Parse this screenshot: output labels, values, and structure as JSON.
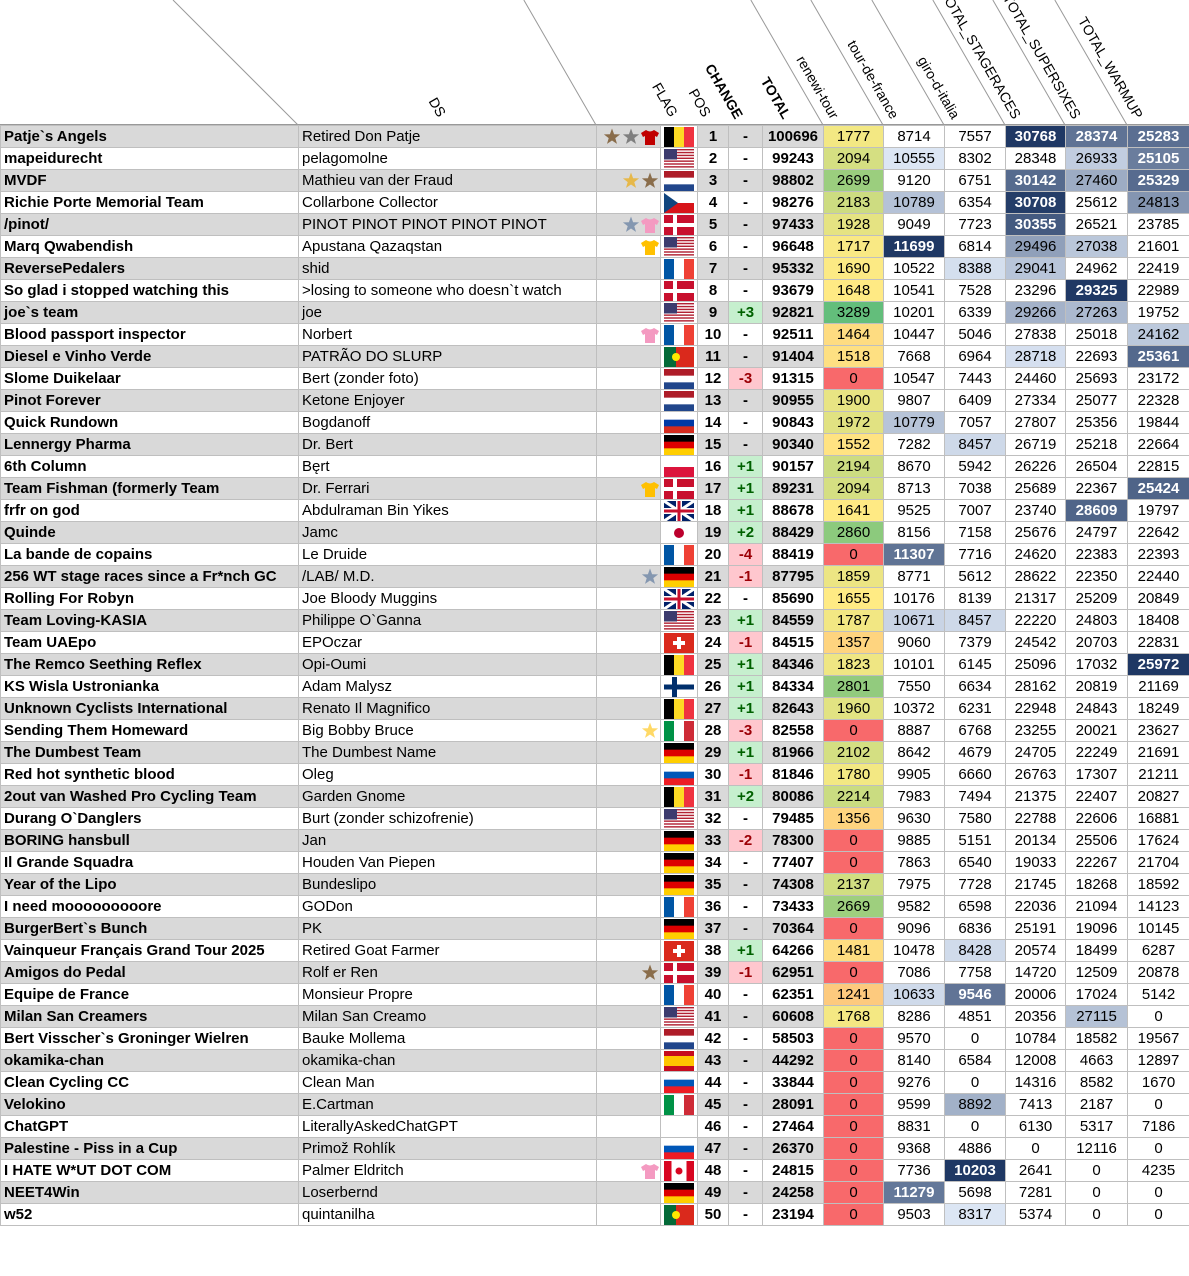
{
  "header": {
    "ds": "DS",
    "flag": "FLAG",
    "pos": "POS",
    "change": "CHANGE",
    "total": "TOTAL",
    "columns": [
      "renewi-tour",
      "tour-de-france",
      "giro-d-italia",
      "TOTAL_STAGERACES",
      "TOTAL_SUPERSIXES",
      "TOTAL_WARMUP"
    ]
  },
  "table": {
    "rows": [
      [
        "Patje`s Angels",
        "Retired Don Patje",
        1,
        "-",
        100696,
        1777,
        8714,
        7557,
        30768,
        28374,
        25283
      ],
      [
        "mapeidurecht",
        "pelagomolne",
        2,
        "-",
        99243,
        2094,
        10555,
        8302,
        28348,
        26933,
        25105
      ],
      [
        "MVDF",
        "Mathieu van der Fraud",
        3,
        "-",
        98802,
        2699,
        9120,
        6751,
        30142,
        27460,
        25329
      ],
      [
        "Richie Porte Memorial Team",
        "Collarbone Collector",
        4,
        "-",
        98276,
        2183,
        10789,
        6354,
        30708,
        25612,
        24813
      ],
      [
        "/pinot/",
        "PINOT PINOT PINOT PINOT PINOT",
        5,
        "-",
        97433,
        1928,
        9049,
        7723,
        30355,
        26521,
        23785
      ],
      [
        "Marq Qwabendish",
        "Apustana Qazaqstan",
        6,
        "-",
        96648,
        1717,
        11699,
        6814,
        29496,
        27038,
        21601
      ],
      [
        "ReversePedalers",
        "shid",
        7,
        "-",
        95332,
        1690,
        10522,
        8388,
        29041,
        24962,
        22419
      ],
      [
        "So glad i stopped watching this",
        ">losing to someone who doesn`t watch",
        8,
        "-",
        93679,
        1648,
        10541,
        7528,
        23296,
        29325,
        22989
      ],
      [
        "joe`s team",
        "joe",
        9,
        "+3",
        92821,
        3289,
        10201,
        6339,
        29266,
        27263,
        19752
      ],
      [
        "Blood passport inspector",
        "Norbert",
        10,
        "-",
        92511,
        1464,
        10447,
        5046,
        27838,
        25018,
        24162
      ],
      [
        "Diesel e Vinho Verde",
        "PATRÃO DO SLURP",
        11,
        "-",
        91404,
        1518,
        7668,
        6964,
        28718,
        22693,
        25361
      ],
      [
        "Slome Duikelaar",
        "Bert (zonder foto)",
        12,
        "-3",
        91315,
        0,
        10547,
        7443,
        24460,
        25693,
        23172
      ],
      [
        "Pinot Forever",
        "Ketone Enjoyer",
        13,
        "-",
        90955,
        1900,
        9807,
        6409,
        27334,
        25077,
        22328
      ],
      [
        "Quick Rundown",
        "Bogdanoff",
        14,
        "-",
        90843,
        1972,
        10779,
        7057,
        27807,
        25356,
        19844
      ],
      [
        "Lennergy Pharma",
        "Dr. Bert",
        15,
        "-",
        90340,
        1552,
        7282,
        8457,
        26719,
        25218,
        22664
      ],
      [
        "6th Column",
        "Bęrt",
        16,
        "+1",
        90157,
        2194,
        8670,
        5942,
        26226,
        26504,
        22815
      ],
      [
        "Team Fishman (formerly Team",
        "Dr. Ferrari",
        17,
        "+1",
        89231,
        2094,
        8713,
        7038,
        25689,
        22367,
        25424
      ],
      [
        "frfr on god",
        "Abdulraman Bin Yikes",
        18,
        "+1",
        88678,
        1641,
        9525,
        7007,
        23740,
        28609,
        19797
      ],
      [
        "Quinde",
        "Jamc",
        19,
        "+2",
        88429,
        2860,
        8156,
        7158,
        25676,
        24797,
        22642
      ],
      [
        "La bande de copains",
        "Le Druide",
        20,
        "-4",
        88419,
        0,
        11307,
        7716,
        24620,
        22383,
        22393
      ],
      [
        "256 WT stage races since a Fr*nch GC",
        "/LAB/ M.D.",
        21,
        "-1",
        87795,
        1859,
        8771,
        5612,
        28622,
        22350,
        22440
      ],
      [
        "Rolling For Robyn",
        "Joe Bloody Muggins",
        22,
        "-",
        85690,
        1655,
        10176,
        8139,
        21317,
        25209,
        20849
      ],
      [
        "Team Loving-KASIA",
        "Philippe O`Ganna",
        23,
        "+1",
        84559,
        1787,
        10671,
        8457,
        22220,
        24803,
        18408
      ],
      [
        "Team UAEpo",
        "EPOczar",
        24,
        "-1",
        84515,
        1357,
        9060,
        7379,
        24542,
        20703,
        22831
      ],
      [
        "The Remco Seething Reflex",
        "Opi-Oumi",
        25,
        "+1",
        84346,
        1823,
        10101,
        6145,
        25096,
        17032,
        25972
      ],
      [
        "KS Wisla Ustronianka",
        "Adam Malysz",
        26,
        "+1",
        84334,
        2801,
        7550,
        6634,
        28162,
        20819,
        21169
      ],
      [
        "Unknown Cyclists International",
        "Renato Il Magnifico",
        27,
        "+1",
        82643,
        1960,
        10372,
        6231,
        22948,
        24843,
        18249
      ],
      [
        "Sending Them Homeward",
        "Big Bobby Bruce",
        28,
        "-3",
        82558,
        0,
        8887,
        6768,
        23255,
        20021,
        23627
      ],
      [
        "The Dumbest Team",
        "The Dumbest Name",
        29,
        "+1",
        81966,
        2102,
        8642,
        4679,
        24705,
        22249,
        21691
      ],
      [
        "Red hot synthetic blood",
        "Oleg",
        30,
        "-1",
        81846,
        1780,
        9905,
        6660,
        26763,
        17307,
        21211
      ],
      [
        "2out van Washed Pro Cycling Team",
        "Garden Gnome",
        31,
        "+2",
        80086,
        2214,
        7983,
        7494,
        21375,
        22407,
        20827
      ],
      [
        "Durang O`Danglers",
        "Burt (zonder schizofrenie)",
        32,
        "-",
        79485,
        1356,
        9630,
        7580,
        22788,
        22606,
        16881
      ],
      [
        "BORING hansbull",
        "Jan",
        33,
        "-2",
        78300,
        0,
        9885,
        5151,
        20134,
        25506,
        17624
      ],
      [
        "Il Grande Squadra",
        "Houden Van Piepen",
        34,
        "-",
        77407,
        0,
        7863,
        6540,
        19033,
        22267,
        21704
      ],
      [
        "Year of the Lipo",
        "Bundeslipo",
        35,
        "-",
        74308,
        2137,
        7975,
        7728,
        21745,
        18268,
        18592
      ],
      [
        "I need mooooooooore",
        "GODon",
        36,
        "-",
        73433,
        2669,
        9582,
        6598,
        22036,
        21094,
        14123
      ],
      [
        "BurgerBert`s Bunch",
        "PK",
        37,
        "-",
        70364,
        0,
        9096,
        6836,
        25191,
        19096,
        10145
      ],
      [
        "Vainqueur Français Grand Tour 2025",
        "Retired Goat Farmer",
        38,
        "+1",
        64266,
        1481,
        10478,
        8428,
        20574,
        18499,
        6287
      ],
      [
        "Amigos do Pedal",
        "Rolf er Ren",
        39,
        "-1",
        62951,
        0,
        7086,
        7758,
        14720,
        12509,
        20878
      ],
      [
        "Equipe de France",
        "Monsieur Propre",
        40,
        "-",
        62351,
        1241,
        10633,
        9546,
        20006,
        17024,
        5142
      ],
      [
        "Milan San Creamers",
        "Milan San Creamo",
        41,
        "-",
        60608,
        1768,
        8286,
        4851,
        20356,
        27115,
        0
      ],
      [
        "Bert Visscher`s Groninger Wielren",
        "Bauke Mollema",
        42,
        "-",
        58503,
        0,
        9570,
        0,
        10784,
        18582,
        19567
      ],
      [
        "okamika-chan",
        "okamika-chan",
        43,
        "-",
        44292,
        0,
        8140,
        6584,
        12008,
        4663,
        12897
      ],
      [
        "Clean Cycling CC",
        "Clean Man",
        44,
        "-",
        33844,
        0,
        9276,
        0,
        14316,
        8582,
        1670
      ],
      [
        "Velokino",
        "E.Cartman",
        45,
        "-",
        28091,
        0,
        9599,
        8892,
        7413,
        2187,
        0
      ],
      [
        "ChatGPT",
        "LiterallyAskedChatGPT",
        46,
        "-",
        27464,
        0,
        8831,
        0,
        6130,
        5317,
        7186
      ],
      [
        "Palestine - Piss in a Cup",
        "Primož Rohlík",
        47,
        "-",
        26370,
        0,
        9368,
        4886,
        0,
        12116,
        0
      ],
      [
        "I HATE W*UT DOT COM",
        "Palmer Eldritch",
        48,
        "-",
        24815,
        0,
        7736,
        10203,
        2641,
        0,
        4235
      ],
      [
        "NEET4Win",
        "Loserbernd",
        49,
        "-",
        24258,
        0,
        11279,
        5698,
        7281,
        0,
        0
      ],
      [
        "w52",
        "quintanilha",
        50,
        "-",
        23194,
        0,
        9503,
        8317,
        5374,
        0,
        0
      ]
    ]
  }
}
